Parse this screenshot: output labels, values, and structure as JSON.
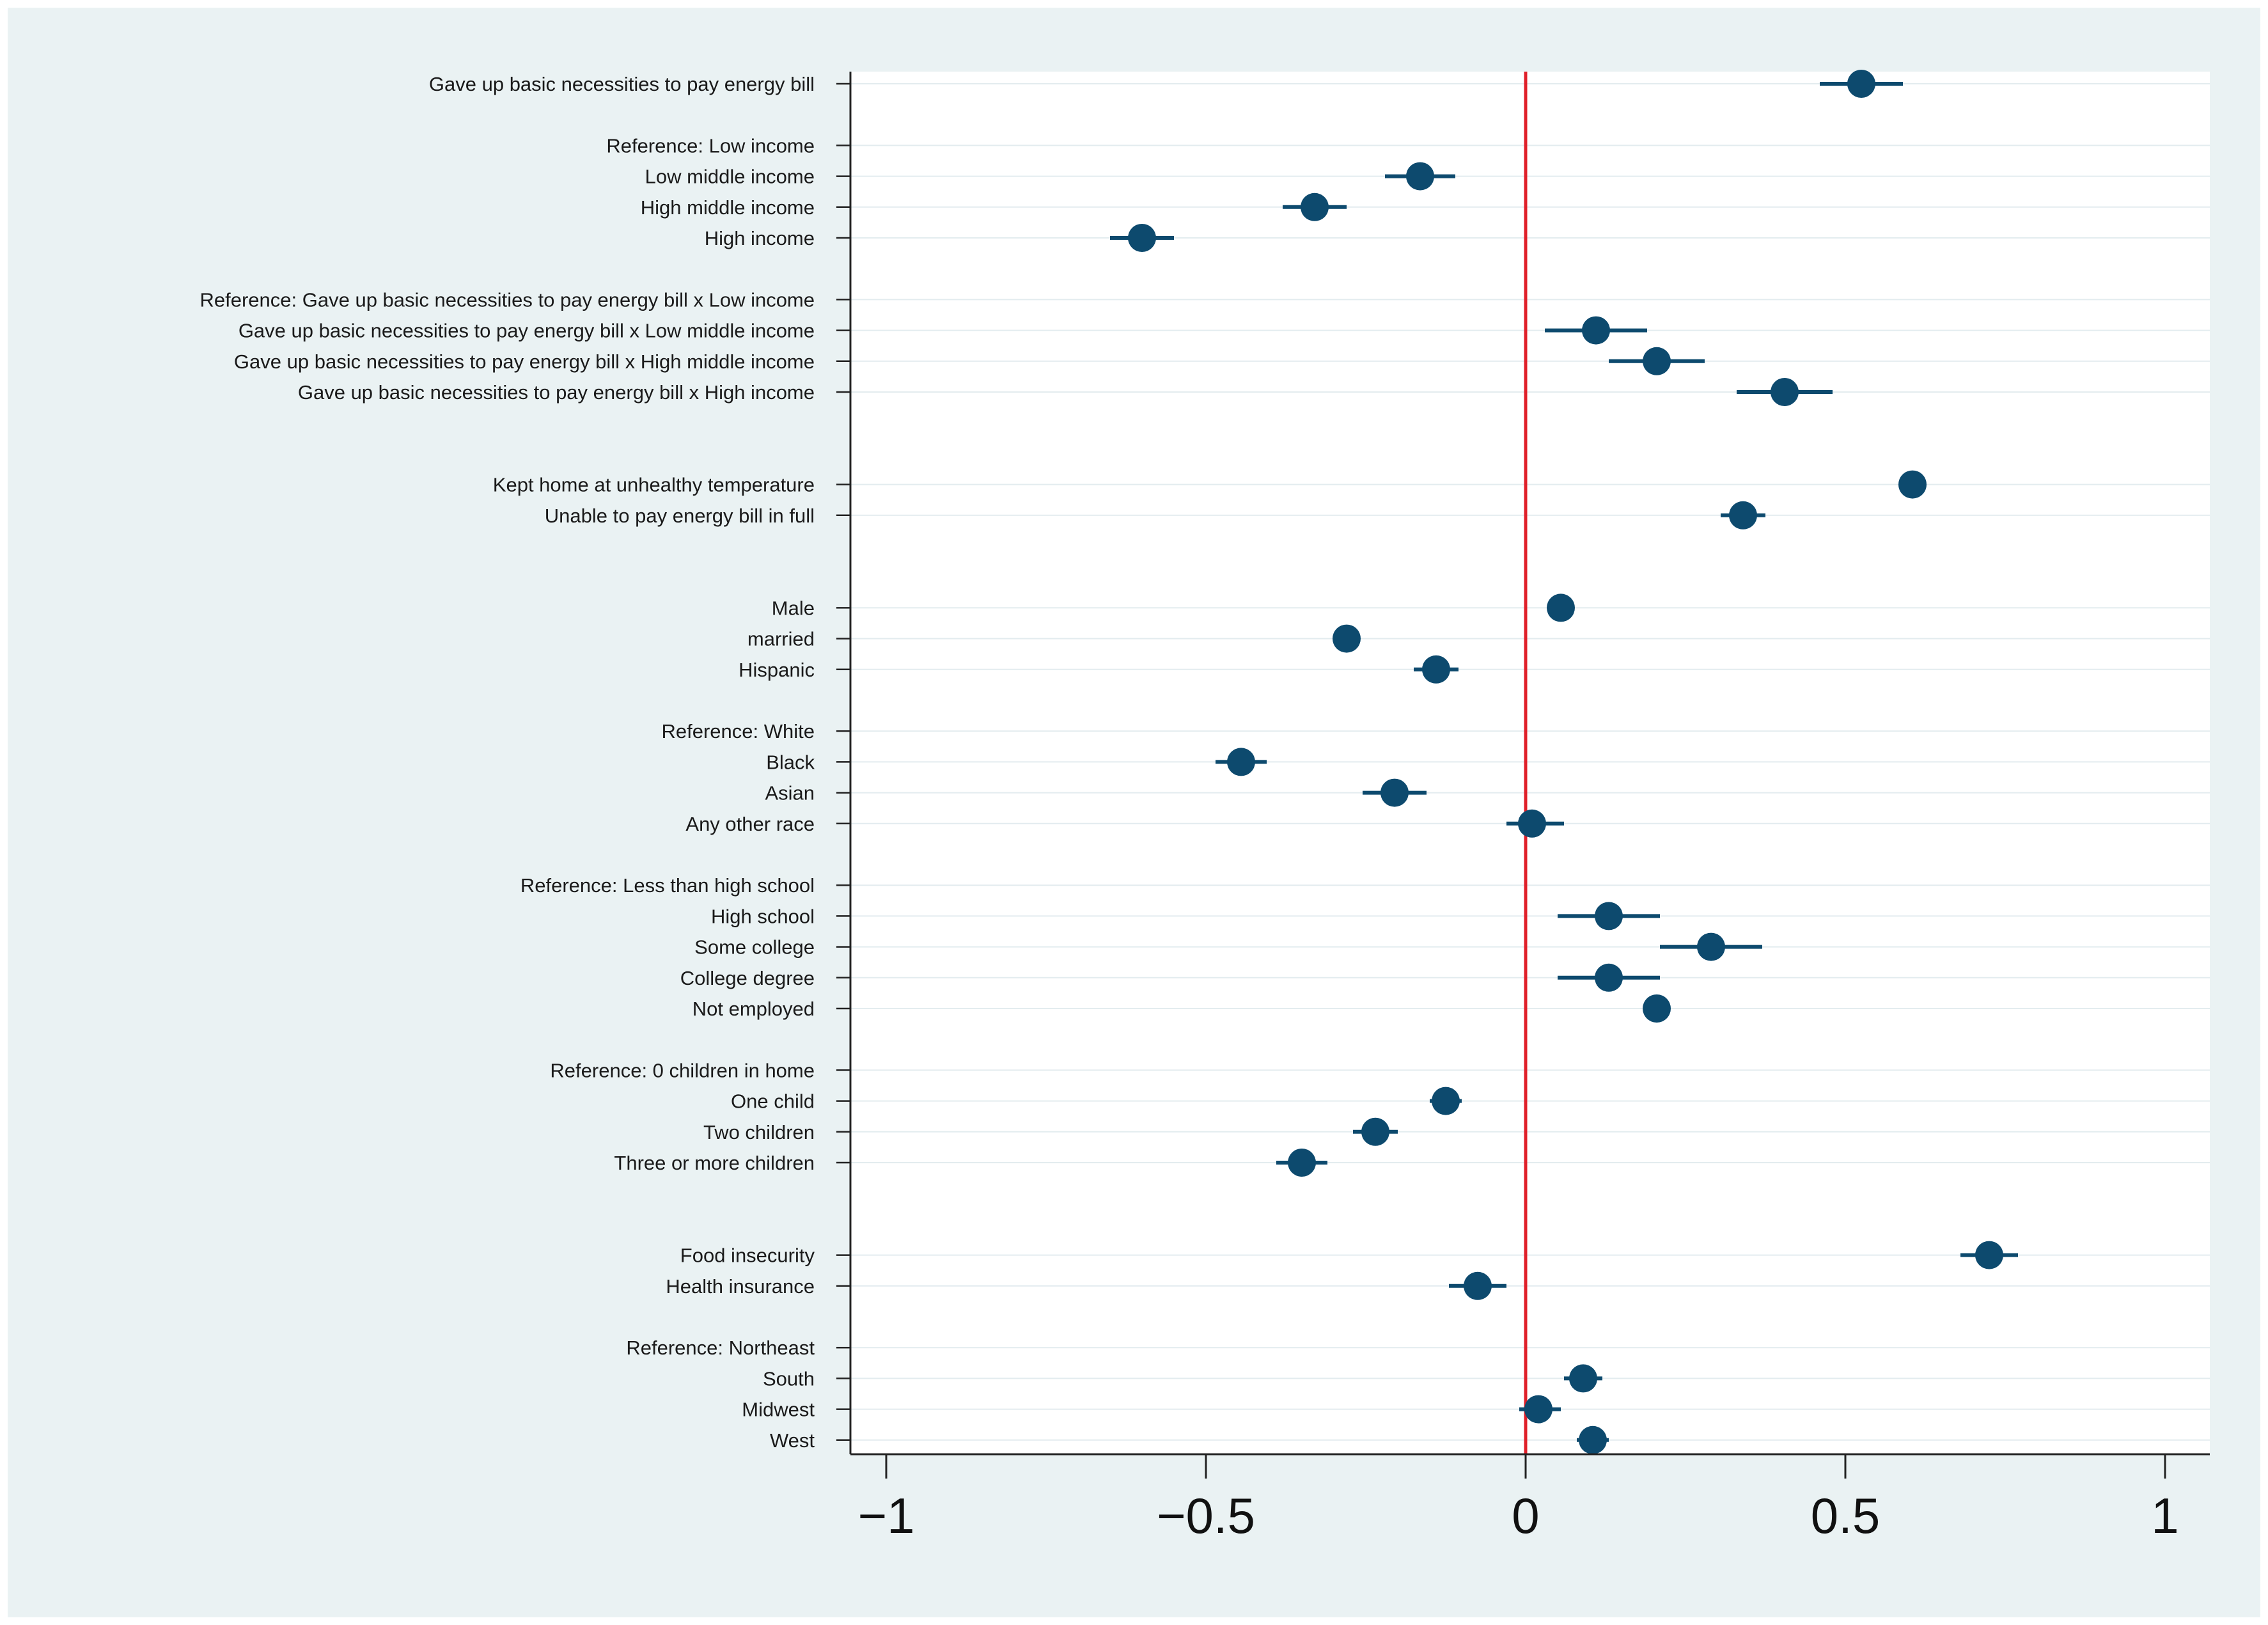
{
  "chart_data": {
    "type": "scatter",
    "subtype": "coefficient-plot",
    "title": "",
    "xlabel": "",
    "ylabel": "",
    "xlim": [
      -1.05,
      1.05
    ],
    "xticks": [
      -1,
      -0.5,
      0,
      0.5,
      1
    ],
    "xtick_labels": [
      "−1",
      "−0.5",
      "0",
      "0.5",
      "1"
    ],
    "reference_line": {
      "x": 0,
      "color": "#e0202a"
    },
    "marker_color": "#0d4a6e",
    "grid": true,
    "rows": [
      {
        "label": "Gave up basic necessities to pay energy bill",
        "estimate": 0.525,
        "ci": [
          0.46,
          0.59
        ]
      },
      {
        "label": "",
        "spacer": true
      },
      {
        "label": "Reference: Low income",
        "reference": true
      },
      {
        "label": "Low middle income",
        "estimate": -0.165,
        "ci": [
          -0.22,
          -0.11
        ]
      },
      {
        "label": "High middle income",
        "estimate": -0.33,
        "ci": [
          -0.38,
          -0.28
        ]
      },
      {
        "label": "High income",
        "estimate": -0.6,
        "ci": [
          -0.65,
          -0.55
        ]
      },
      {
        "label": "",
        "spacer": true
      },
      {
        "label": "Reference: Gave up basic necessities to pay energy bill x Low income",
        "reference": true
      },
      {
        "label": "Gave up basic necessities to pay energy bill x Low middle income",
        "estimate": 0.11,
        "ci": [
          0.03,
          0.19
        ]
      },
      {
        "label": "Gave up basic necessities to pay energy bill x High middle income",
        "estimate": 0.205,
        "ci": [
          0.13,
          0.28
        ]
      },
      {
        "label": "Gave up basic necessities to pay energy bill x High income",
        "estimate": 0.405,
        "ci": [
          0.33,
          0.48
        ]
      },
      {
        "label": "",
        "spacer": true
      },
      {
        "label": "",
        "spacer": true
      },
      {
        "label": "Kept home at unhealthy temperature",
        "estimate": 0.605,
        "ci": [
          0.585,
          0.625
        ]
      },
      {
        "label": "Unable to pay energy bill in full",
        "estimate": 0.34,
        "ci": [
          0.305,
          0.375
        ]
      },
      {
        "label": "",
        "spacer": true
      },
      {
        "label": "",
        "spacer": true
      },
      {
        "label": "Male",
        "estimate": 0.055,
        "ci": [
          0.045,
          0.065
        ]
      },
      {
        "label": "married",
        "estimate": -0.28,
        "ci": [
          -0.29,
          -0.27
        ]
      },
      {
        "label": "Hispanic",
        "estimate": -0.14,
        "ci": [
          -0.175,
          -0.105
        ]
      },
      {
        "label": "",
        "spacer": true
      },
      {
        "label": "Reference: White",
        "reference": true
      },
      {
        "label": "Black",
        "estimate": -0.445,
        "ci": [
          -0.485,
          -0.405
        ]
      },
      {
        "label": "Asian",
        "estimate": -0.205,
        "ci": [
          -0.255,
          -0.155
        ]
      },
      {
        "label": "Any other race",
        "estimate": 0.01,
        "ci": [
          -0.03,
          0.06
        ]
      },
      {
        "label": "",
        "spacer": true
      },
      {
        "label": "Reference: Less than high school",
        "reference": true
      },
      {
        "label": "High school",
        "estimate": 0.13,
        "ci": [
          0.05,
          0.21
        ]
      },
      {
        "label": "Some college",
        "estimate": 0.29,
        "ci": [
          0.21,
          0.37
        ]
      },
      {
        "label": "College degree",
        "estimate": 0.13,
        "ci": [
          0.05,
          0.21
        ]
      },
      {
        "label": "Not employed",
        "estimate": 0.205,
        "ci": [
          0.19,
          0.22
        ]
      },
      {
        "label": "",
        "spacer": true
      },
      {
        "label": "Reference: 0 children in home",
        "reference": true
      },
      {
        "label": "One child",
        "estimate": -0.125,
        "ci": [
          -0.15,
          -0.1
        ]
      },
      {
        "label": "Two children",
        "estimate": -0.235,
        "ci": [
          -0.27,
          -0.2
        ]
      },
      {
        "label": "Three or more children",
        "estimate": -0.35,
        "ci": [
          -0.39,
          -0.31
        ]
      },
      {
        "label": "",
        "spacer": true
      },
      {
        "label": "",
        "spacer": true
      },
      {
        "label": "Food insecurity",
        "estimate": 0.725,
        "ci": [
          0.68,
          0.77
        ]
      },
      {
        "label": "Health insurance",
        "estimate": -0.075,
        "ci": [
          -0.12,
          -0.03
        ]
      },
      {
        "label": "",
        "spacer": true
      },
      {
        "label": "Reference: Northeast",
        "reference": true
      },
      {
        "label": "South",
        "estimate": 0.09,
        "ci": [
          0.06,
          0.12
        ]
      },
      {
        "label": "Midwest",
        "estimate": 0.02,
        "ci": [
          -0.01,
          0.055
        ]
      },
      {
        "label": "West",
        "estimate": 0.105,
        "ci": [
          0.08,
          0.13
        ]
      }
    ]
  }
}
